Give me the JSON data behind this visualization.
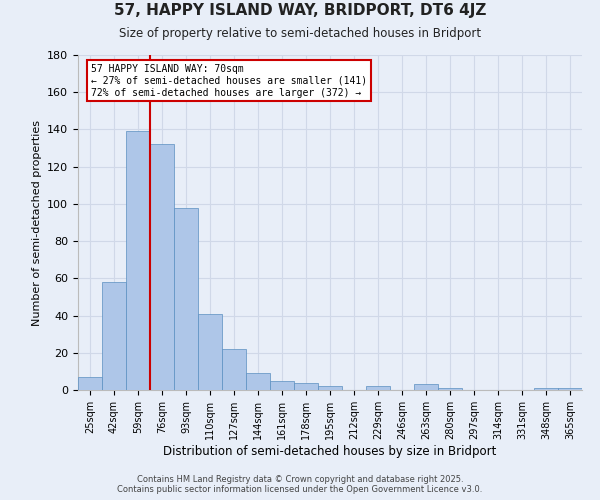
{
  "title": "57, HAPPY ISLAND WAY, BRIDPORT, DT6 4JZ",
  "subtitle": "Size of property relative to semi-detached houses in Bridport",
  "xlabel": "Distribution of semi-detached houses by size in Bridport",
  "ylabel": "Number of semi-detached properties",
  "bin_labels": [
    "25sqm",
    "42sqm",
    "59sqm",
    "76sqm",
    "93sqm",
    "110sqm",
    "127sqm",
    "144sqm",
    "161sqm",
    "178sqm",
    "195sqm",
    "212sqm",
    "229sqm",
    "246sqm",
    "263sqm",
    "280sqm",
    "297sqm",
    "314sqm",
    "331sqm",
    "348sqm",
    "365sqm"
  ],
  "bar_heights": [
    7,
    58,
    139,
    132,
    98,
    41,
    22,
    9,
    5,
    4,
    2,
    0,
    2,
    0,
    3,
    1,
    0,
    0,
    0,
    1,
    1
  ],
  "bar_color": "#aec6e8",
  "bar_edge_color": "#5a8fc0",
  "property_bin_index": 2,
  "annotation_title": "57 HAPPY ISLAND WAY: 70sqm",
  "annotation_line1": "← 27% of semi-detached houses are smaller (141)",
  "annotation_line2": "72% of semi-detached houses are larger (372) →",
  "annotation_box_color": "#ffffff",
  "annotation_box_edge": "#cc0000",
  "vline_color": "#cc0000",
  "ylim": [
    0,
    180
  ],
  "yticks": [
    0,
    20,
    40,
    60,
    80,
    100,
    120,
    140,
    160,
    180
  ],
  "grid_color": "#d0d8e8",
  "background_color": "#e8eef8",
  "footnote1": "Contains HM Land Registry data © Crown copyright and database right 2025.",
  "footnote2": "Contains public sector information licensed under the Open Government Licence v3.0."
}
